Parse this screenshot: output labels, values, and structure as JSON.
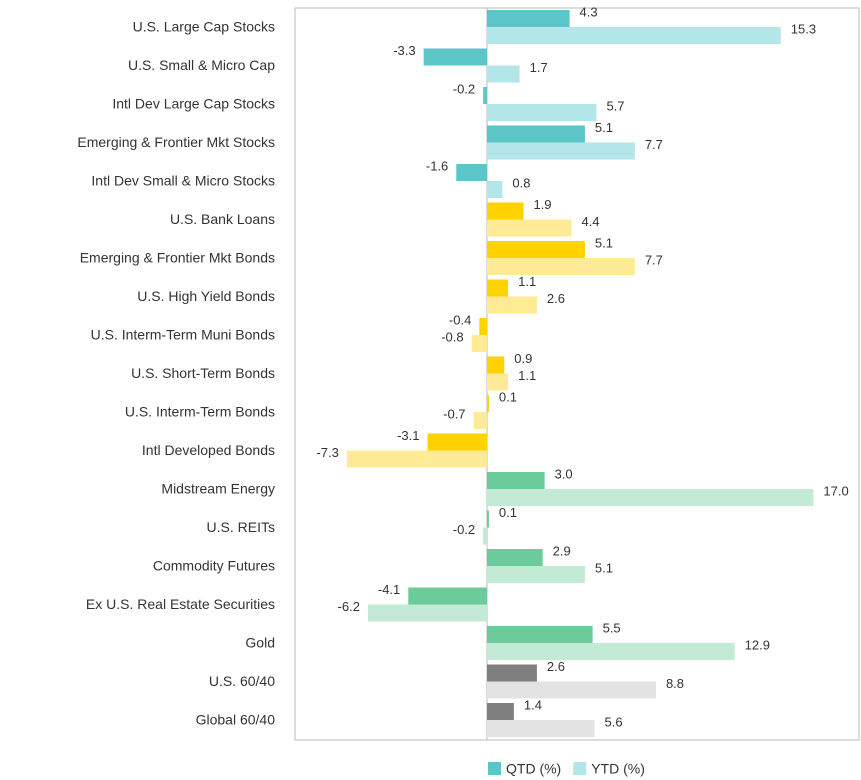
{
  "chart_data": {
    "type": "bar",
    "orientation": "horizontal",
    "categories": [
      "U.S. Large Cap Stocks",
      "U.S. Small & Micro Cap",
      "Intl Dev Large Cap Stocks",
      "Emerging & Frontier Mkt Stocks",
      "Intl Dev Small & Micro Stocks",
      "U.S. Bank Loans",
      "Emerging & Frontier Mkt Bonds",
      "U.S. High Yield Bonds",
      "U.S. Interm-Term Muni Bonds",
      "U.S. Short-Term Bonds",
      "U.S. Interm-Term Bonds",
      "Intl Developed Bonds",
      "Midstream Energy",
      "U.S. REITs",
      "Commodity Futures",
      "Ex U.S. Real Estate Securities",
      "Gold",
      "U.S. 60/40",
      "Global 60/40"
    ],
    "series": [
      {
        "name": "QTD (%)",
        "color": "#5bc5c8",
        "colors": [
          "#5bc5c8",
          "#5bc5c8",
          "#5bc5c8",
          "#5bc5c8",
          "#5bc5c8",
          "#ffd200",
          "#ffd200",
          "#ffd200",
          "#ffd200",
          "#ffd200",
          "#ffd200",
          "#ffd200",
          "#6ccb9b",
          "#6ccb9b",
          "#6ccb9b",
          "#6ccb9b",
          "#6ccb9b",
          "#7f7f7f",
          "#7f7f7f"
        ],
        "values": [
          4.3,
          -3.3,
          -0.2,
          5.1,
          -1.6,
          1.9,
          5.1,
          1.1,
          -0.4,
          0.9,
          0.1,
          -3.1,
          3.0,
          0.1,
          2.9,
          -4.1,
          5.5,
          2.6,
          1.4
        ],
        "value_labels": [
          "4.3",
          "-3.3",
          "-0.2",
          "5.1",
          "-1.6",
          "1.9",
          "5.1",
          "1.1",
          "-0.4",
          "0.9",
          "0.1",
          "-3.1",
          "3.0",
          "0.1",
          "2.9",
          "-4.1",
          "5.5",
          "2.6",
          "1.4"
        ]
      },
      {
        "name": "YTD (%)",
        "color": "#b3e6e8",
        "colors": [
          "#b3e6e8",
          "#b3e6e8",
          "#b3e6e8",
          "#b3e6e8",
          "#b3e6e8",
          "#ffeb96",
          "#ffeb96",
          "#ffeb96",
          "#ffeb96",
          "#ffeb96",
          "#ffeb96",
          "#ffeb96",
          "#c2ead5",
          "#c2ead5",
          "#c2ead5",
          "#c2ead5",
          "#c2ead5",
          "#e3e3e3",
          "#e3e3e3"
        ],
        "values": [
          15.3,
          1.7,
          5.7,
          7.7,
          0.8,
          4.4,
          7.7,
          2.6,
          -0.8,
          1.1,
          -0.7,
          -7.3,
          17.0,
          -0.2,
          5.1,
          -6.2,
          12.9,
          8.8,
          5.6
        ],
        "value_labels": [
          "15.3",
          "1.7",
          "5.7",
          "7.7",
          "0.8",
          "4.4",
          "7.7",
          "2.6",
          "-0.8",
          "1.1",
          "-0.7",
          "-7.3",
          "17.0",
          "-0.2",
          "5.1",
          "-6.2",
          "12.9",
          "8.8",
          "5.6"
        ]
      }
    ]
  }
}
